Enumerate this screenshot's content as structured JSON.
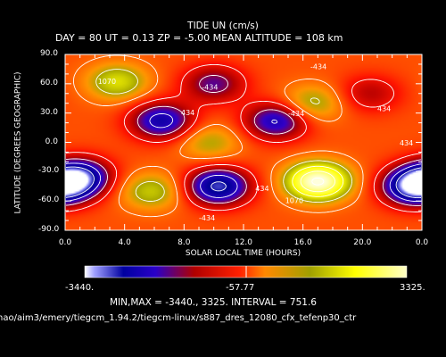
{
  "header": {
    "title": "TIDE UN (cm/s)",
    "subtitle": "DAY =  80  UT =  0.13  ZP =  -5.00  MEAN ALTITUDE = 108 km"
  },
  "chart_data": {
    "type": "heatmap",
    "title": "TIDE UN (cm/s)",
    "xlabel": "SOLAR LOCAL TIME (HOURS)",
    "ylabel": "LATITUDE (DEGREES GEOGRAPHIC)",
    "xlim": [
      0,
      24
    ],
    "ylim": [
      -90,
      90
    ],
    "x_ticks": [
      "0.0",
      "4.0",
      "8.0",
      "12.0",
      "16.0",
      "20.0",
      "0.0"
    ],
    "y_ticks": [
      "90.0",
      "60.0",
      "30.0",
      "0.0",
      "-30.0",
      "-60.0",
      "-90.0"
    ],
    "min": -3440,
    "max": 3325,
    "interval": 751.6,
    "contour_labels": [
      "1070",
      "-434",
      "-434",
      "434",
      "-434",
      "434",
      "-434",
      "434",
      "434",
      "1070"
    ],
    "colorbar": {
      "left": "-3440.",
      "middle": "-57.77",
      "right": "3325."
    },
    "features": [
      {
        "lt": 3.5,
        "lat": 62,
        "value": 1500
      },
      {
        "lt": 6.5,
        "lat": 22,
        "value": -2400
      },
      {
        "lt": 10.0,
        "lat": 60,
        "value": -1600
      },
      {
        "lt": 9.7,
        "lat": 0,
        "value": 1000
      },
      {
        "lt": 14.2,
        "lat": 22,
        "value": -2200
      },
      {
        "lt": 16.6,
        "lat": 40,
        "value": 1200
      },
      {
        "lt": 20.5,
        "lat": 50,
        "value": -1000
      },
      {
        "lt": 5.8,
        "lat": -50,
        "value": 1300
      },
      {
        "lt": 1.0,
        "lat": -35,
        "value": -2600
      },
      {
        "lt": 10.3,
        "lat": -45,
        "value": -3000
      },
      {
        "lt": 17.0,
        "lat": -40,
        "value": 3325
      },
      {
        "lt": 23.5,
        "lat": -45,
        "value": -3440
      }
    ]
  },
  "footer": {
    "minmax_text": "MIN,MAX =     -3440.,      3325. INTERVAL =       751.6",
    "path_text": "hao/aim3/emery/tiegcm_1.94.2/tiegcm-linux/s887_dres_12080_cfx_tefenp30_ctr"
  }
}
